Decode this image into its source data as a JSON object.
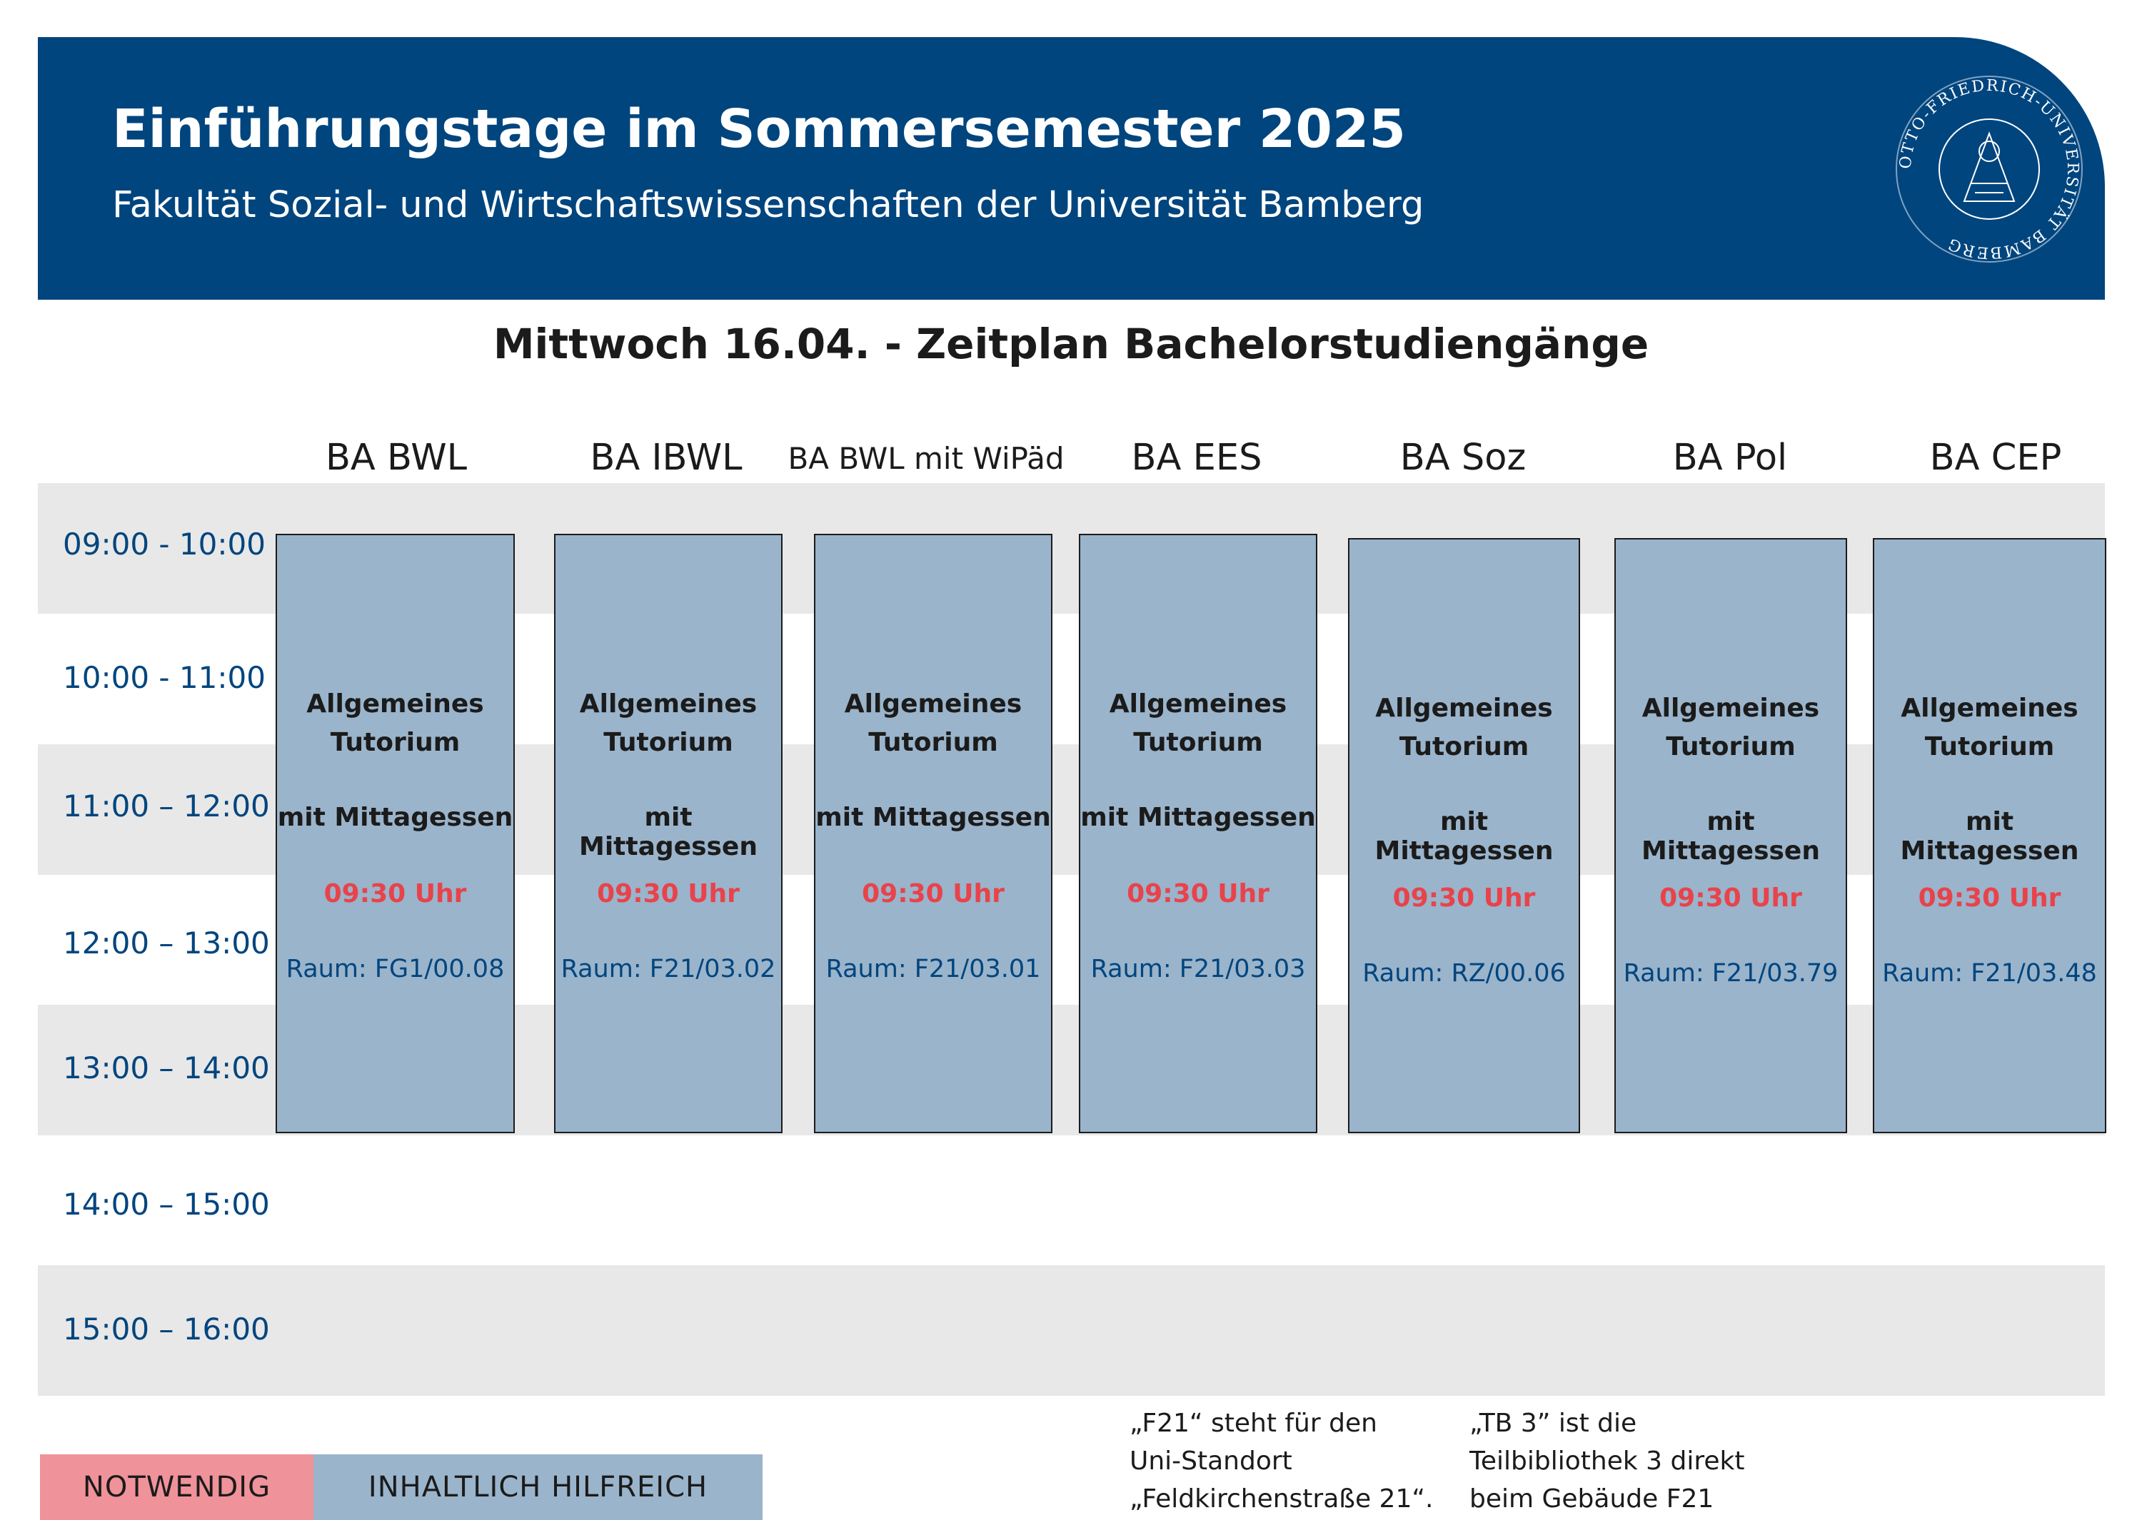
{
  "header": {
    "title": "Einführungstage im Sommersemester 2025",
    "subtitle": "Fakultät Sozial- und Wirtschaftswissenschaften der Universität Bamberg",
    "seal_text": "OTTO-FRIEDRICH-UNIVERSITÄT BAMBERG"
  },
  "page_title": "Mittwoch 16.04. - Zeitplan Bachelorstudiengänge",
  "columns": [
    "BA BWL",
    "BA IBWL",
    "BA BWL mit WiPäd",
    "BA EES",
    "BA Soz",
    "BA Pol",
    "BA CEP"
  ],
  "times": [
    "09:00 - 10:00",
    "10:00 - 11:00",
    "11:00 – 12:00",
    "12:00 – 13:00",
    "13:00 – 14:00",
    "14:00 – 15:00",
    "15:00 – 16:00"
  ],
  "slots": [
    {
      "l1": "Allgemeines",
      "l2": "Tutorium",
      "l3": "mit Mittagessen",
      "time": "09:30 Uhr",
      "room": "Raum: FG1/00.08"
    },
    {
      "l1": "Allgemeines",
      "l2": "Tutorium",
      "l3": "mit Mittagessen",
      "time": "09:30 Uhr",
      "room": "Raum: F21/03.02"
    },
    {
      "l1": "Allgemeines",
      "l2": "Tutorium",
      "l3": "mit Mittagessen",
      "time": "09:30 Uhr",
      "room": "Raum: F21/03.01"
    },
    {
      "l1": "Allgemeines",
      "l2": "Tutorium",
      "l3": "mit Mittagessen",
      "time": "09:30 Uhr",
      "room": "Raum: F21/03.03"
    },
    {
      "l1": "Allgemeines",
      "l2": "Tutorium",
      "l3": "mit Mittagessen",
      "time": "09:30 Uhr",
      "room": "Raum: RZ/00.06"
    },
    {
      "l1": "Allgemeines",
      "l2": "Tutorium",
      "l3": "mit Mittagessen",
      "time": "09:30 Uhr",
      "room": "Raum: F21/03.79"
    },
    {
      "l1": "Allgemeines",
      "l2": "Tutorium",
      "l3": "mit Mittagessen",
      "time": "09:30 Uhr",
      "room": "Raum: F21/03.48"
    }
  ],
  "legend": {
    "required": "NOTWENDIG",
    "helpful": "INHALTLICH HILFREICH"
  },
  "notes": {
    "f21": [
      "„F21“ steht für den",
      "Uni-Standort",
      "„Feldkirchenstraße 21“."
    ],
    "tb3": [
      "„TB 3” ist die",
      "Teilbibliothek 3 direkt",
      "beim Gebäude F21"
    ]
  },
  "colors": {
    "header": "#00457e",
    "slot": "#9ab4cb",
    "required": "#f0929a",
    "band": "#e8e8e8",
    "accent_red": "#e8434b"
  }
}
